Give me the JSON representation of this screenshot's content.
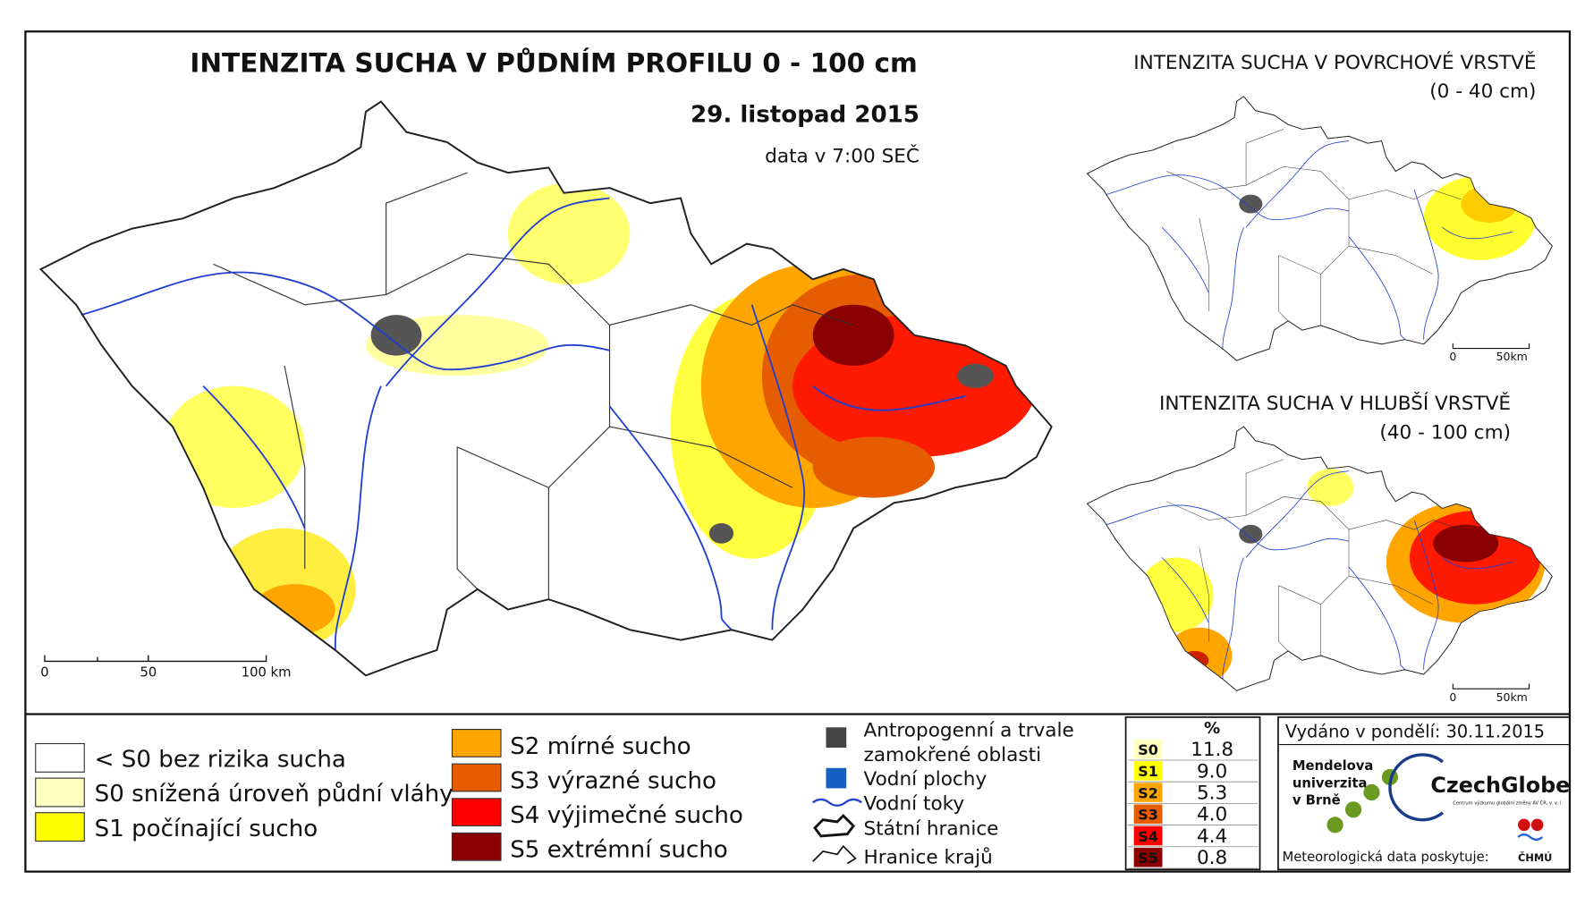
{
  "main_map": {
    "title": "INTENZITA SUCHA V PŮDNÍM PROFILU 0 - 100 cm",
    "date": "29. listopad 2015",
    "time_note": "data v 7:00 SEČ",
    "scale_labels": [
      "0",
      "50",
      "100 km"
    ]
  },
  "inset_maps": [
    {
      "title": "INTENZITA SUCHA V POVRCHOVÉ VRSTVĚ",
      "subtitle": "(0 - 40 cm)",
      "scale_labels": [
        "0",
        "50km"
      ]
    },
    {
      "title": "INTENZITA SUCHA V HLUBŠÍ VRSTVĚ",
      "subtitle": "(40 - 100 cm)",
      "scale_labels": [
        "0",
        "50km"
      ]
    }
  ],
  "legend": {
    "classes": [
      "< S0 bez rizika sucha",
      "S0 snížená úroveň půdní vláhy",
      "S1 počínající sucho",
      "S2 mírné sucho",
      "S3 výrazné sucho",
      "S4 výjimečné sucho",
      "S5 extrémní sucho"
    ],
    "other": [
      "Antropogenní a trvale",
      "zamokřené oblasti",
      "Vodní plochy",
      "Vodní toky",
      "Státní hranice",
      "Hranice krajů"
    ]
  },
  "stats_table": {
    "header": "%",
    "rows": [
      [
        "S0",
        "11.8"
      ],
      [
        "S1",
        "9.0"
      ],
      [
        "S2",
        "5.3"
      ],
      [
        "S3",
        "4.0"
      ],
      [
        "S4",
        "4.4"
      ],
      [
        "S5",
        "0.8"
      ]
    ]
  },
  "footer": {
    "issued": "Vydáno v pondělí: 30.11.2015",
    "university": [
      "Mendelova",
      "univerzita",
      "v Brně"
    ],
    "czechglobe": "CzechGlobe",
    "czechglobe_sub": "Centrum výzkumu globální změny AV ČR, v. v. i.",
    "credit": "Meteorologická data poskytuje:",
    "chmu": "ČHMÚ"
  }
}
